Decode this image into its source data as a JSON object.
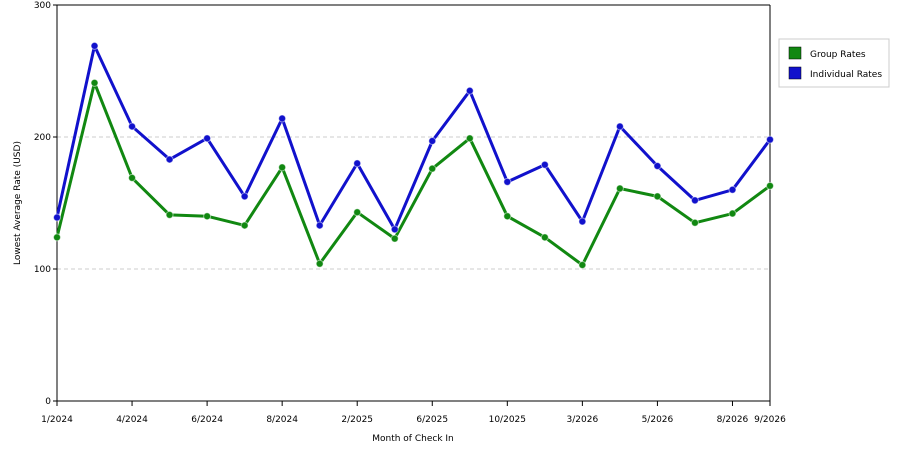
{
  "chart_data": {
    "type": "line",
    "xlabel": "Month of Check In",
    "ylabel": "Lowest Average Rate (USD)",
    "ylim": [
      0,
      300
    ],
    "y_ticks": [
      0,
      100,
      200,
      300
    ],
    "grid": "horizontal-dashed",
    "legend_position": "top-right",
    "x_tick_labels": [
      {
        "index": 0,
        "label": "1/2024"
      },
      {
        "index": 2,
        "label": "4/2024"
      },
      {
        "index": 4,
        "label": "6/2024"
      },
      {
        "index": 6,
        "label": "8/2024"
      },
      {
        "index": 8,
        "label": "2/2025"
      },
      {
        "index": 10,
        "label": "6/2025"
      },
      {
        "index": 12,
        "label": "10/2025"
      },
      {
        "index": 14,
        "label": "3/2026"
      },
      {
        "index": 16,
        "label": "5/2026"
      },
      {
        "index": 18,
        "label": "8/2026"
      },
      {
        "index": 19,
        "label": "9/2026"
      }
    ],
    "x_count": 20,
    "series": [
      {
        "name": "Group Rates",
        "color": "#118811",
        "values": [
          124,
          241,
          169,
          141,
          140,
          133,
          177,
          104,
          143,
          123,
          176,
          199,
          140,
          124,
          103,
          161,
          155,
          135,
          142,
          163
        ]
      },
      {
        "name": "Individual Rates",
        "color": "#1111cc",
        "values": [
          139,
          269,
          208,
          183,
          199,
          155,
          214,
          133,
          180,
          130,
          197,
          235,
          166,
          179,
          136,
          208,
          178,
          152,
          160,
          198
        ]
      }
    ]
  }
}
